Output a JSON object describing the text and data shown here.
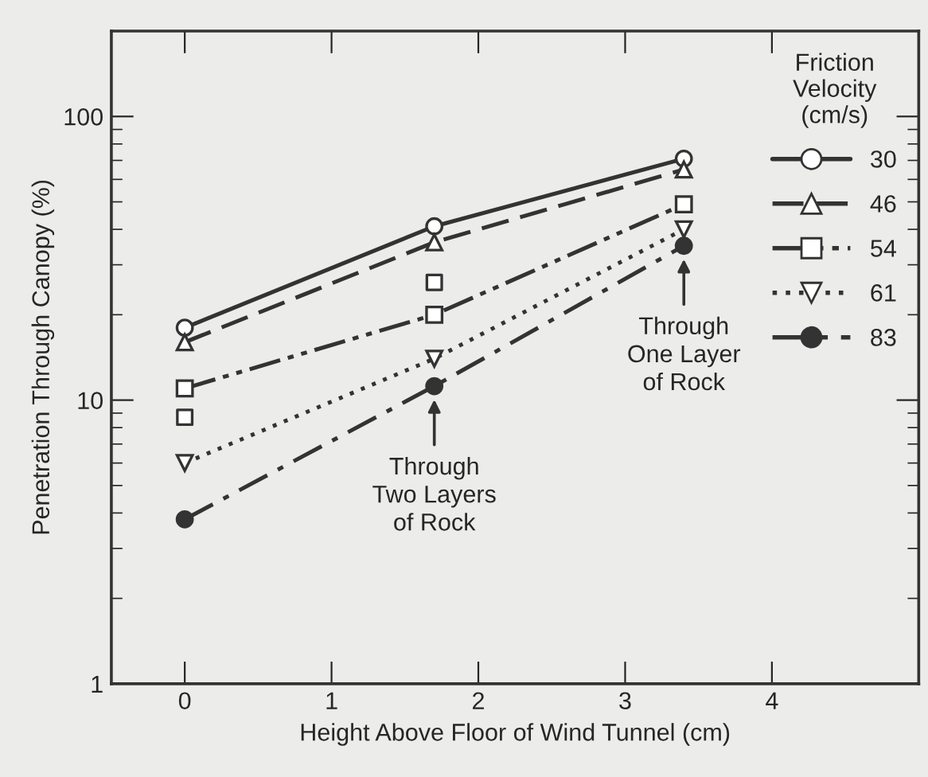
{
  "chart_data": {
    "type": "line",
    "xlabel": "Height Above Floor of Wind Tunnel (cm)",
    "ylabel": "Penetration Through Canopy (%)",
    "legend_title": "Friction\nVelocity\n(cm/s)",
    "legend": "upper right",
    "log": "y",
    "grid": false,
    "xlim": [
      -0.5,
      5
    ],
    "xticks": [
      0,
      1,
      2,
      3,
      4
    ],
    "ylim": [
      1,
      200
    ],
    "yticks": [
      1,
      10,
      100
    ],
    "series": [
      {
        "name": "30",
        "color": "#333333",
        "line_style": "solid",
        "marker": "circle",
        "x": [
          0,
          1.7,
          3.4
        ],
        "values": [
          18,
          41,
          71
        ]
      },
      {
        "name": "46",
        "color": "#333333",
        "line_style": "dashed",
        "marker": "triangle",
        "x": [
          0,
          1.7,
          3.4
        ],
        "values": [
          16,
          36,
          65
        ]
      },
      {
        "name": "54",
        "color": "#333333",
        "line_style": "dashdotdot",
        "marker": "square",
        "x": [
          0,
          1.7,
          3.4
        ],
        "values": [
          11,
          20,
          49
        ]
      },
      {
        "name": "61",
        "color": "#333333",
        "line_style": "dotted",
        "marker": "triangle_down",
        "x": [
          0,
          1.7,
          3.4
        ],
        "values": [
          6,
          14,
          40
        ]
      },
      {
        "name": "83",
        "color": "#333333",
        "line_style": "dashdot",
        "marker": "filled_circle",
        "x": [
          0,
          1.7,
          3.4
        ],
        "values": [
          3.8,
          11.2,
          35
        ]
      },
      {
        "type": "scatter",
        "color": "#333333",
        "marker": "square",
        "x": [
          0,
          1.7
        ],
        "values": [
          8.7,
          26
        ]
      }
    ],
    "annotations": [
      {
        "text": "Through\nTwo Layers\nof Rock",
        "x": 1.7,
        "y": 11.2
      },
      {
        "text": "Through\nOne Layer\nof Rock",
        "x": 3.4,
        "y": 35
      }
    ]
  }
}
